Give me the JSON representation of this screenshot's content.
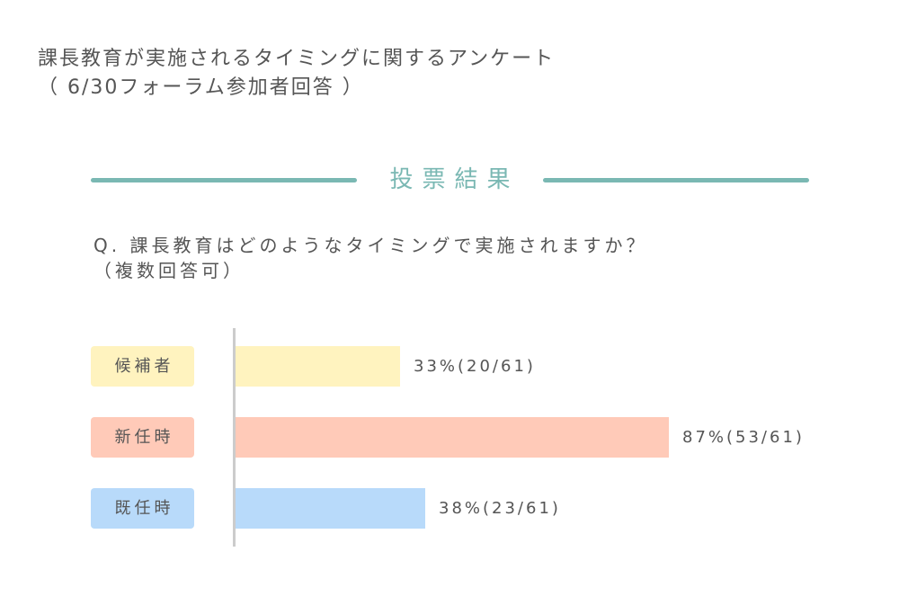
{
  "title": {
    "line1": "課長教育が実施されるタイミングに関するアンケート",
    "line2": "（ 6/30フォーラム参加者回答 ）"
  },
  "section_header": {
    "label": "投票結果",
    "color": "#7ab8b3"
  },
  "question": {
    "line1": "Q. 課長教育はどのようなタイミングで実施されますか？",
    "line2": "（複数回答可）"
  },
  "chart_data": {
    "type": "bar",
    "orientation": "horizontal",
    "title": "投票結果",
    "question": "Q. 課長教育はどのようなタイミングで実施されますか？（複数回答可）",
    "categories": [
      "候補者",
      "新任時",
      "既任時"
    ],
    "values": [
      33,
      87,
      38
    ],
    "counts": [
      20,
      53,
      23
    ],
    "total": 61,
    "unit": "%",
    "labels": [
      "33%(20/61)",
      "87%(53/61)",
      "38%(23/61)"
    ],
    "colors": [
      "#fff3bf",
      "#ffcab8",
      "#b8dafa"
    ],
    "xlim": [
      0,
      100
    ],
    "grid": false,
    "legend": "none"
  },
  "bars": [
    {
      "category": "候補者",
      "label": "33%(20/61)",
      "color": "#fff3bf",
      "label_bg": "#fff3bf"
    },
    {
      "category": "新任時",
      "label": "87%(53/61)",
      "color": "#ffcab8",
      "label_bg": "#ffcab8"
    },
    {
      "category": "既任時",
      "label": "38%(23/61)",
      "color": "#b8dafa",
      "label_bg": "#b8dafa"
    }
  ]
}
